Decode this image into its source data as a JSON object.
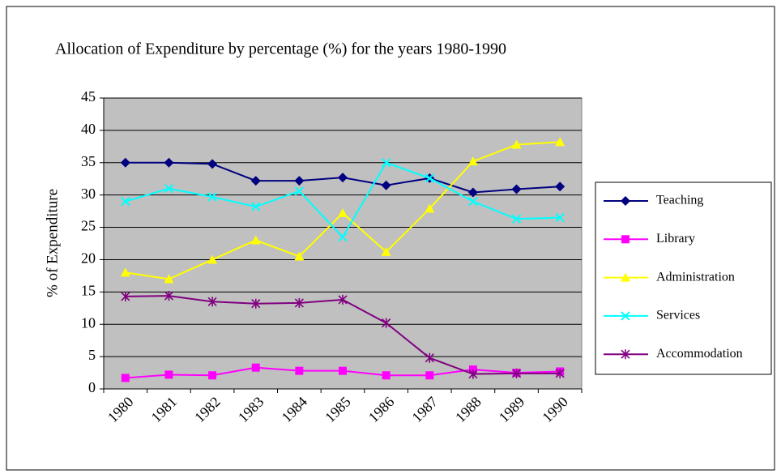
{
  "chart_data": {
    "type": "line",
    "title": "Allocation of Expenditure by percentage (%) for the years 1980-1990",
    "y_label": "% of Expenditure",
    "categories": [
      "1980",
      "1981",
      "1982",
      "1983",
      "1984",
      "1985",
      "1986",
      "1987",
      "1988",
      "1989",
      "1990"
    ],
    "series": [
      {
        "name": "Teaching",
        "color": "#000080",
        "marker": "diamond",
        "values": [
          35,
          35,
          34.8,
          32.2,
          32.2,
          32.7,
          31.5,
          32.6,
          30.4,
          30.9,
          31.3
        ]
      },
      {
        "name": "Library",
        "color": "#ff00ff",
        "marker": "square",
        "values": [
          1.7,
          2.2,
          2.1,
          3.3,
          2.8,
          2.8,
          2.1,
          2.1,
          3.0,
          2.5,
          2.7
        ]
      },
      {
        "name": "Administration",
        "color": "#ffff00",
        "marker": "triangle",
        "values": [
          18,
          17,
          20,
          23,
          20.5,
          27.2,
          21.2,
          27.9,
          35.2,
          37.8,
          38.2
        ]
      },
      {
        "name": "Services",
        "color": "#00ffff",
        "marker": "x",
        "values": [
          29,
          31,
          29.7,
          28.2,
          30.6,
          23.5,
          35,
          32.6,
          29,
          26.3,
          26.5
        ]
      },
      {
        "name": "Accommodation",
        "color": "#800080",
        "marker": "star",
        "values": [
          14.3,
          14.4,
          13.5,
          13.2,
          13.3,
          13.8,
          10.2,
          4.8,
          2.3,
          2.4,
          2.4
        ]
      }
    ],
    "ylim": [
      0,
      45
    ],
    "yticks": [
      0,
      5,
      10,
      15,
      20,
      25,
      30,
      35,
      40,
      45
    ],
    "grid": true,
    "legend": "right"
  }
}
